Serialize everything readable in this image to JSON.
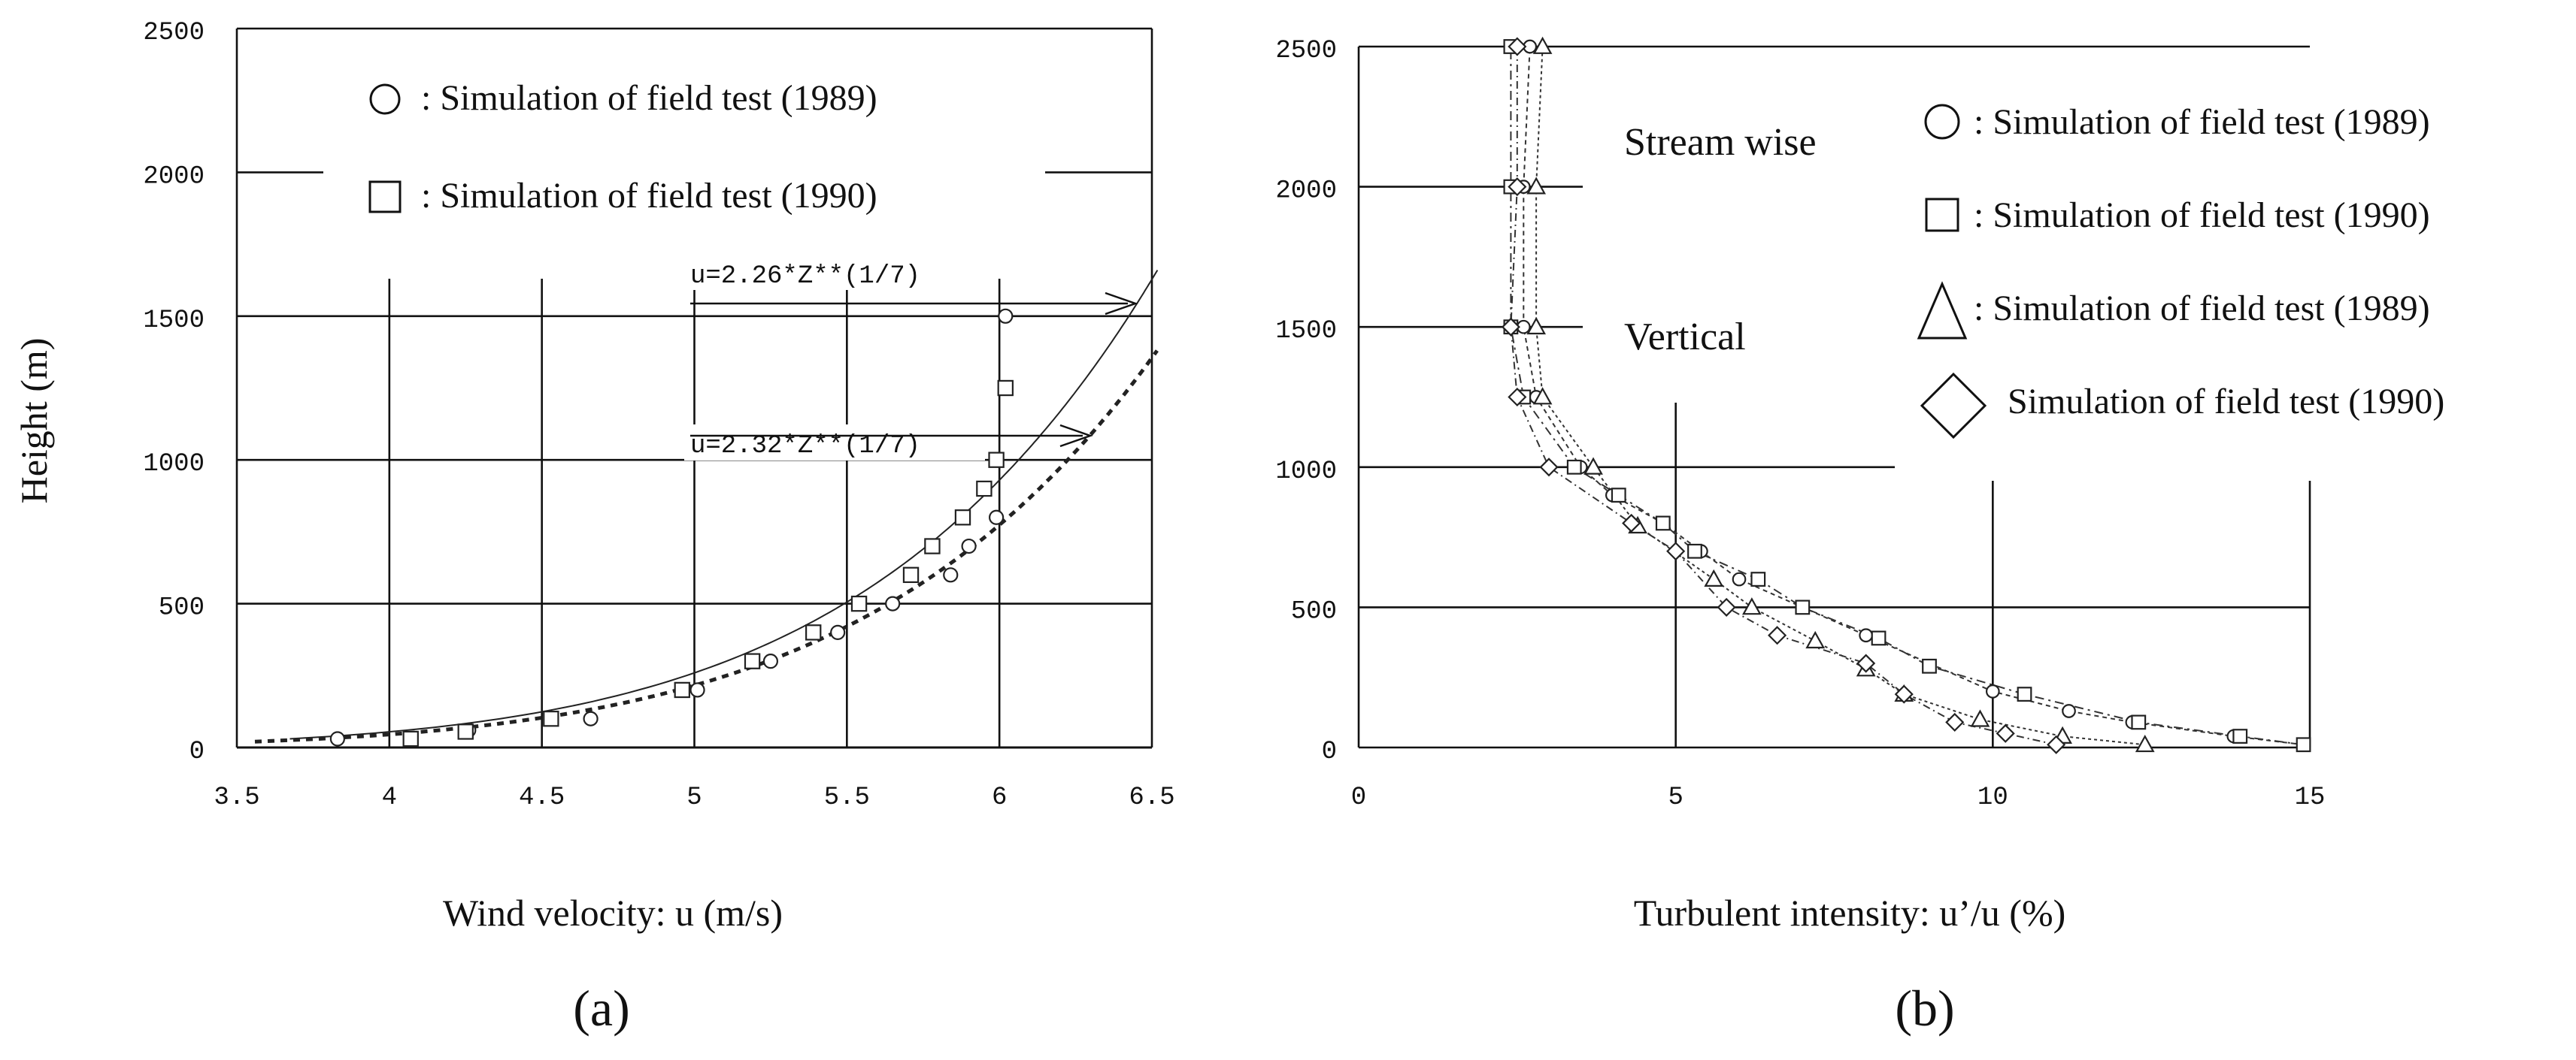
{
  "chart_data": [
    {
      "type": "scatter",
      "panel_label": "(a)",
      "xlabel": "Wind velocity: u (m/s)",
      "ylabel": "Height (m)",
      "xlim": [
        3.5,
        6.5
      ],
      "ylim": [
        0,
        2500
      ],
      "xticks": [
        "3.5",
        "4",
        "4.5",
        "5",
        "5.5",
        "6",
        "6.5"
      ],
      "yticks": [
        "0",
        "500",
        "1000",
        "1500",
        "2000",
        "2500"
      ],
      "grid": true,
      "legend_position": "top",
      "legend": [
        {
          "marker": "circle",
          "label": ":  Simulation of field test (1989)"
        },
        {
          "marker": "square",
          "label": ":  Simulation of field test (1990)"
        }
      ],
      "series": [
        {
          "name": "Simulation of field test (1989)",
          "marker": "circle",
          "points": [
            [
              3.83,
              30
            ],
            [
              4.26,
              60
            ],
            [
              4.66,
              100
            ],
            [
              5.01,
              200
            ],
            [
              5.25,
              300
            ],
            [
              5.47,
              400
            ],
            [
              5.65,
              500
            ],
            [
              5.84,
              600
            ],
            [
              5.9,
              700
            ],
            [
              5.99,
              800
            ],
            [
              6.02,
              1500
            ]
          ]
        },
        {
          "name": "Simulation of field test (1990)",
          "marker": "square",
          "points": [
            [
              4.07,
              30
            ],
            [
              4.25,
              55
            ],
            [
              4.53,
              100
            ],
            [
              4.96,
              200
            ],
            [
              5.19,
              300
            ],
            [
              5.39,
              400
            ],
            [
              5.54,
              500
            ],
            [
              5.71,
              600
            ],
            [
              5.78,
              700
            ],
            [
              5.88,
              800
            ],
            [
              5.95,
              900
            ],
            [
              5.99,
              1000
            ],
            [
              6.02,
              1250
            ]
          ]
        }
      ],
      "fits": [
        {
          "label": "u=2.26*Z**(1/7)",
          "coef": 2.26,
          "style": "solid"
        },
        {
          "label": "u=2.32*Z**(1/7)",
          "coef": 2.32,
          "style": "dotted"
        }
      ]
    },
    {
      "type": "line",
      "panel_label": "(b)",
      "xlabel": "Turbulent intensity: u’/u (%)",
      "xlim": [
        0,
        15
      ],
      "ylim": [
        0,
        2500
      ],
      "xticks": [
        "0",
        "5",
        "10",
        "15"
      ],
      "yticks": [
        "0",
        "500",
        "1000",
        "1500",
        "2000",
        "2500"
      ],
      "grid": true,
      "legend_position": "right",
      "annotations": [
        "Stream wise",
        "Vertical"
      ],
      "legend": [
        {
          "marker": "circle",
          "label": ":  Simulation of field test (1989)"
        },
        {
          "marker": "square",
          "label": ":  Simulation of field test (1990)"
        },
        {
          "marker": "triangle",
          "label": ": Simulation of field test (1989)"
        },
        {
          "marker": "diamond",
          "label": "Simulation of field test (1990)"
        }
      ],
      "series": [
        {
          "name": "Stream wise 1989",
          "marker": "circle",
          "points": [
            [
              14.9,
              10
            ],
            [
              13.8,
              40
            ],
            [
              12.2,
              90
            ],
            [
              11.2,
              130
            ],
            [
              10.0,
              200
            ],
            [
              8.0,
              400
            ],
            [
              6.0,
              600
            ],
            [
              5.4,
              700
            ],
            [
              4.8,
              800
            ],
            [
              4.0,
              900
            ],
            [
              3.5,
              1000
            ],
            [
              2.8,
              1250
            ],
            [
              2.6,
              1500
            ],
            [
              2.6,
              2000
            ],
            [
              2.7,
              2500
            ]
          ]
        },
        {
          "name": "Stream wise 1990",
          "marker": "square",
          "points": [
            [
              14.9,
              10
            ],
            [
              13.9,
              40
            ],
            [
              12.3,
              90
            ],
            [
              10.5,
              190
            ],
            [
              9.0,
              290
            ],
            [
              8.2,
              390
            ],
            [
              7.0,
              500
            ],
            [
              6.3,
              600
            ],
            [
              5.3,
              700
            ],
            [
              4.8,
              800
            ],
            [
              4.1,
              900
            ],
            [
              3.4,
              1000
            ],
            [
              2.6,
              1250
            ],
            [
              2.4,
              1500
            ],
            [
              2.4,
              2000
            ],
            [
              2.4,
              2500
            ]
          ]
        },
        {
          "name": "Vertical 1989",
          "marker": "triangle",
          "points": [
            [
              12.4,
              10
            ],
            [
              11.1,
              40
            ],
            [
              9.8,
              100
            ],
            [
              8.6,
              190
            ],
            [
              8.0,
              280
            ],
            [
              7.2,
              380
            ],
            [
              6.2,
              500
            ],
            [
              5.6,
              600
            ],
            [
              4.4,
              790
            ],
            [
              3.7,
              1000
            ],
            [
              2.9,
              1250
            ],
            [
              2.8,
              1500
            ],
            [
              2.8,
              2000
            ],
            [
              2.9,
              2500
            ]
          ]
        },
        {
          "name": "Vertical 1990",
          "marker": "diamond",
          "points": [
            [
              11.0,
              10
            ],
            [
              10.2,
              50
            ],
            [
              9.4,
              90
            ],
            [
              8.6,
              190
            ],
            [
              8.0,
              300
            ],
            [
              6.6,
              400
            ],
            [
              5.8,
              500
            ],
            [
              5.0,
              700
            ],
            [
              4.3,
              800
            ],
            [
              3.0,
              1000
            ],
            [
              2.5,
              1250
            ],
            [
              2.4,
              1500
            ],
            [
              2.5,
              2000
            ],
            [
              2.5,
              2500
            ]
          ]
        }
      ]
    }
  ]
}
